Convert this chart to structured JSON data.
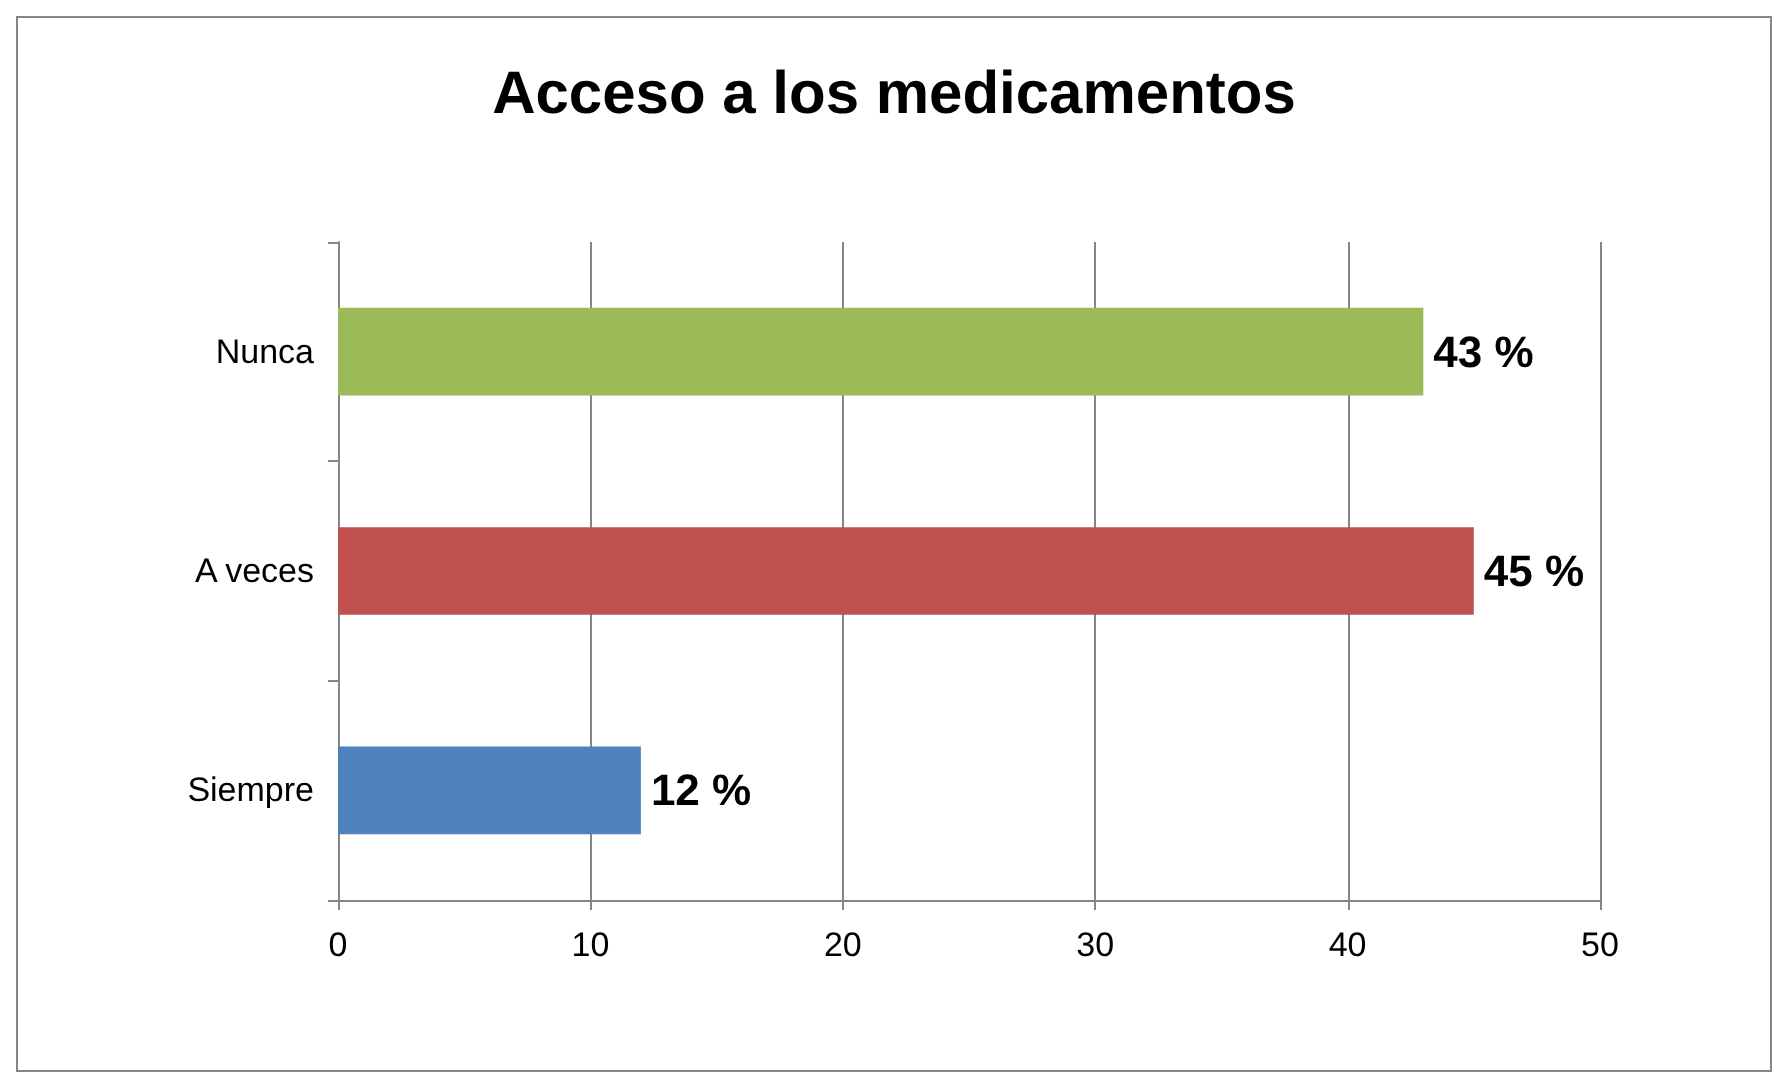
{
  "chart_data": {
    "type": "bar",
    "orientation": "horizontal",
    "title": "Acceso a los medicamentos",
    "categories": [
      "Nunca",
      "A veces",
      "Siempre"
    ],
    "values": [
      43,
      45,
      12
    ],
    "colors": [
      "#9bbb59",
      "#c0504d",
      "#4f81bd"
    ],
    "value_labels": [
      "43 %",
      "45 %",
      "12 %"
    ],
    "xlim": [
      0,
      50
    ],
    "xticks": [
      0,
      10,
      20,
      30,
      40,
      50
    ],
    "grid": "x"
  }
}
